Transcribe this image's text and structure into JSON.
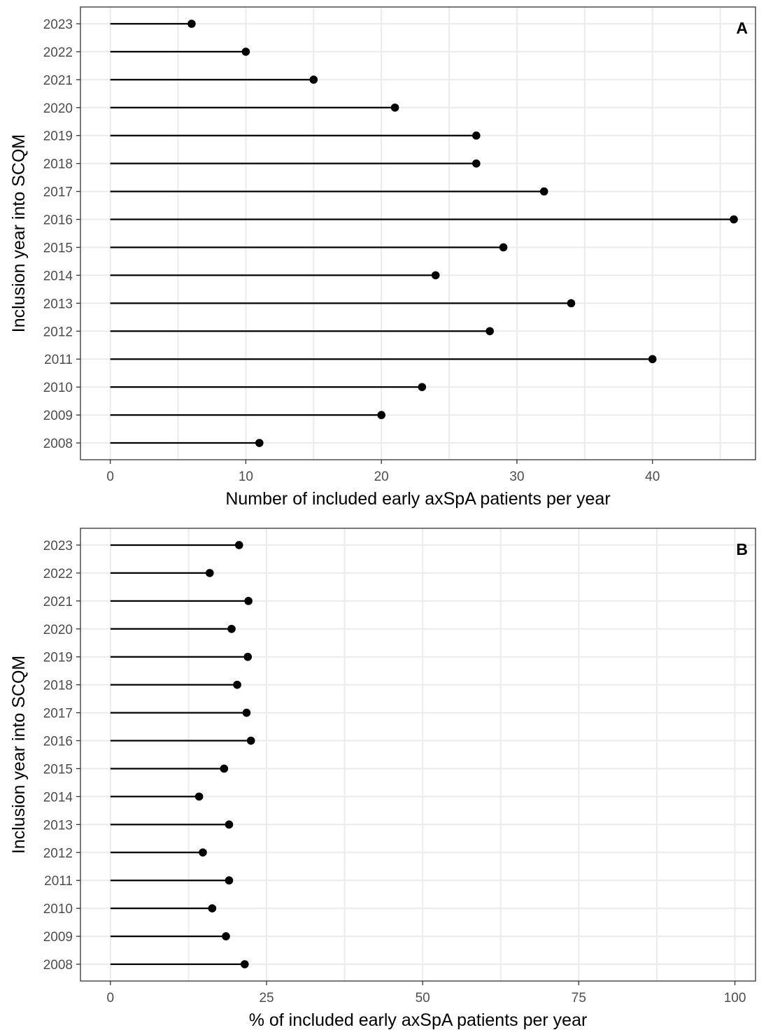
{
  "chart_data": [
    {
      "type": "lollipop",
      "panel_label": "A",
      "xlabel": "Number of included early axSpA patients per year",
      "ylabel": "Inclusion year into SCQM",
      "xlim": [
        -2.2,
        47.6
      ],
      "xticks": [
        0,
        10,
        20,
        30,
        40
      ],
      "categories": [
        "2008",
        "2009",
        "2010",
        "2011",
        "2012",
        "2013",
        "2014",
        "2015",
        "2016",
        "2017",
        "2018",
        "2019",
        "2020",
        "2021",
        "2022",
        "2023"
      ],
      "values": [
        11,
        20,
        23,
        40,
        28,
        34,
        24,
        29,
        46,
        32,
        27,
        27,
        21,
        15,
        10,
        6
      ],
      "grid": true
    },
    {
      "type": "lollipop",
      "panel_label": "B",
      "xlabel": "% of included early axSpA patients per year",
      "ylabel": "Inclusion year into SCQM",
      "xlim": [
        -4.8,
        103.3
      ],
      "xticks": [
        0,
        25,
        50,
        75,
        100
      ],
      "categories": [
        "2008",
        "2009",
        "2010",
        "2011",
        "2012",
        "2013",
        "2014",
        "2015",
        "2016",
        "2017",
        "2018",
        "2019",
        "2020",
        "2021",
        "2022",
        "2023"
      ],
      "values": [
        21.5,
        18.5,
        16.3,
        19.0,
        14.8,
        19.0,
        14.2,
        18.2,
        22.5,
        21.8,
        20.3,
        22.0,
        19.4,
        22.1,
        15.9,
        20.6
      ],
      "grid": true
    }
  ]
}
